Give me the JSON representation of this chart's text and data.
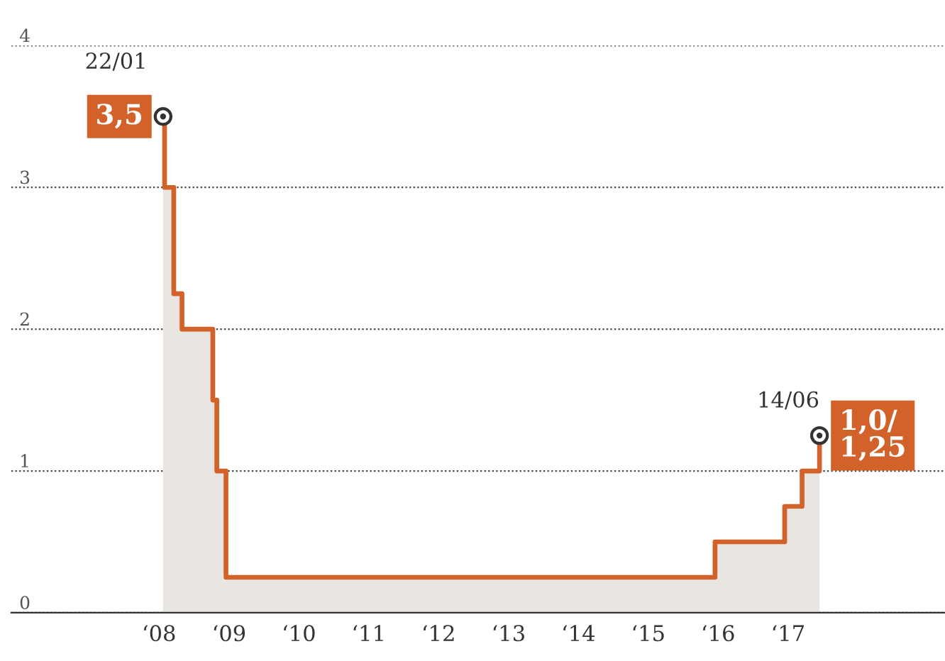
{
  "chart_data": {
    "type": "step",
    "x": [
      "2008-01-22",
      "2008-01-30",
      "2008-03-18",
      "2008-04-30",
      "2008-10-08",
      "2008-10-29",
      "2008-12-16",
      "2015-12-16",
      "2016-12-14",
      "2017-03-15",
      "2017-06-14"
    ],
    "series": [
      {
        "type": "area",
        "color": "#e9e5e0",
        "values": [
          3.5,
          3.0,
          2.25,
          2.0,
          1.5,
          1.0,
          0.25,
          0.5,
          0.75,
          1.0,
          1.25
        ]
      },
      {
        "color": "#d2612a",
        "values": [
          3.5,
          3.0,
          2.25,
          2.0,
          1.5,
          1.0,
          0.25,
          0.5,
          0.75,
          1.0,
          1.25
        ]
      }
    ],
    "xlim": [
      "2005-11-20",
      "2019-04-01"
    ],
    "xticks": [
      {
        "value": "2008-01-01",
        "label": "‘08"
      },
      {
        "value": "2009-01-01",
        "label": "‘09"
      },
      {
        "value": "2010-01-01",
        "label": "‘10"
      },
      {
        "value": "2011-01-01",
        "label": "‘11"
      },
      {
        "value": "2012-01-01",
        "label": "‘12"
      },
      {
        "value": "2013-01-01",
        "label": "‘13"
      },
      {
        "value": "2014-01-01",
        "label": "‘14"
      },
      {
        "value": "2015-01-01",
        "label": "‘15"
      },
      {
        "value": "2016-01-01",
        "label": "‘16"
      },
      {
        "value": "2017-01-01",
        "label": "‘17"
      }
    ],
    "ylim": [
      0,
      4
    ],
    "yticks": [
      0,
      1,
      2,
      3,
      4
    ],
    "grid": "y",
    "annotations": [
      {
        "text": "22/01",
        "x": "2008-01-22",
        "y": 3.5
      },
      {
        "text": "3,5",
        "x": "2008-01-22",
        "y": 3.5
      },
      {
        "text": "14/06",
        "x": "2017-06-14",
        "y": 1.25
      },
      {
        "text": "1,0/\n1,25",
        "x": "2017-06-14",
        "y": 1.25
      }
    ]
  }
}
